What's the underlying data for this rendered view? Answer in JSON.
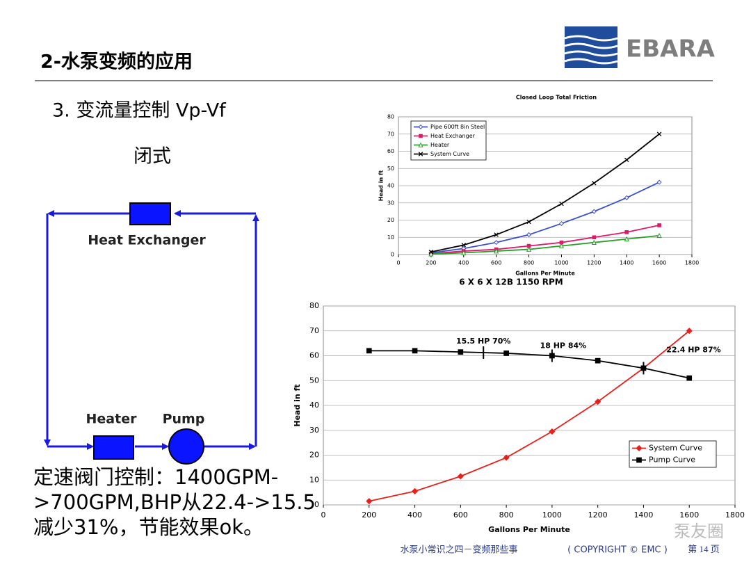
{
  "header": {
    "title": "2-水泵变频的应用",
    "logo": "EBARA"
  },
  "body": {
    "item": "3.  变流量控制 Vp-Vf",
    "subtitle": "闭式",
    "diagram": {
      "heat_exchanger": "Heat Exchanger",
      "heater": "Heater",
      "pump": "Pump"
    },
    "note": [
      "定速阀门控制：1400GPM-",
      ">700GPM,BHP从22.4->15.5",
      "减少31%，节能效果ok。"
    ]
  },
  "footer": {
    "text": "水泵小常识之四－变频那些事",
    "copyright": "( COPYRIGHT © EMC )",
    "page": "第 14 页",
    "watermark": "泵友圈"
  },
  "chart_data": [
    {
      "type": "line",
      "title": "Closed Loop Total Friction",
      "xlabel": "Gallons Per Minute",
      "ylabel": "Head in ft",
      "x": [
        200,
        400,
        600,
        800,
        1000,
        1200,
        1400,
        1600
      ],
      "xlim": [
        0,
        1800
      ],
      "xticks": [
        0,
        200,
        400,
        600,
        800,
        1000,
        1200,
        1400,
        1600,
        1800
      ],
      "ylim": [
        0,
        80
      ],
      "yticks": [
        0,
        10,
        20,
        30,
        40,
        50,
        60,
        70,
        80
      ],
      "grid": true,
      "legend": "upper left",
      "series": [
        {
          "name": "Pipe 600ft 8in Steel",
          "color": "#3a4fd0",
          "marker": "diamond",
          "values": [
            1,
            3.5,
            7,
            11.5,
            18,
            25,
            33,
            42
          ]
        },
        {
          "name": "Heat Exchanger",
          "color": "#e0186a",
          "marker": "square",
          "values": [
            0.5,
            2,
            3,
            5,
            7,
            10,
            13,
            17
          ]
        },
        {
          "name": "Heater",
          "color": "#2aa02a",
          "marker": "triangle",
          "values": [
            0.3,
            1,
            2,
            3,
            5,
            7,
            9,
            11
          ]
        },
        {
          "name": "System Curve",
          "color": "#000000",
          "marker": "x",
          "values": [
            1.5,
            5.5,
            11.5,
            19,
            29.5,
            41.5,
            55,
            70
          ]
        }
      ]
    },
    {
      "type": "line",
      "title": "6 X 6 X 12B  1150 RPM",
      "xlabel": "Gallons Per Minute",
      "ylabel": "Head in ft",
      "x": [
        200,
        400,
        600,
        800,
        1000,
        1200,
        1400,
        1600
      ],
      "xlim": [
        0,
        1800
      ],
      "xticks": [
        0,
        200,
        400,
        600,
        800,
        1000,
        1200,
        1400,
        1600,
        1800
      ],
      "ylim": [
        0,
        80
      ],
      "yticks": [
        0,
        10,
        20,
        30,
        40,
        50,
        60,
        70,
        80
      ],
      "grid": true,
      "legend": "lower right",
      "series": [
        {
          "name": "System Curve",
          "color": "#e8201c",
          "marker": "diamond",
          "values": [
            1.5,
            5.5,
            11.5,
            19,
            29.5,
            41.5,
            55,
            70
          ]
        },
        {
          "name": "Pump Curve",
          "color": "#000000",
          "marker": "square",
          "values": [
            62,
            62,
            61.5,
            61,
            60,
            58,
            55,
            51
          ]
        }
      ],
      "annotations": [
        {
          "text": "15.5 HP  70%",
          "x": 700
        },
        {
          "text": "18 HP  84%",
          "x": 1000
        },
        {
          "text": "22.4 HP  87%",
          "x": 1400
        }
      ]
    }
  ]
}
